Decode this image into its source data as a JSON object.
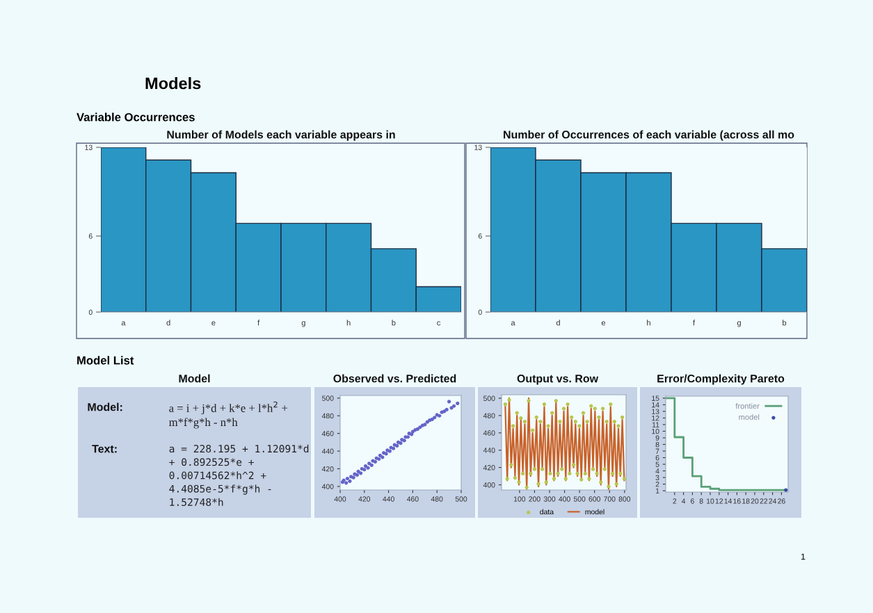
{
  "chart_data": [
    {
      "type": "other",
      "title": "Models",
      "annotations": [
        "Variable Occurrences",
        "Model List",
        "1"
      ]
    },
    {
      "type": "bar",
      "title": "Number of Models each variable appears in",
      "categories": [
        "a",
        "d",
        "e",
        "f",
        "g",
        "h",
        "b",
        "c"
      ],
      "values": [
        13,
        12,
        11,
        7,
        7,
        7,
        5,
        2
      ],
      "color": "#2a96c4",
      "ylim": [
        0,
        13
      ],
      "yticks": [
        0,
        6,
        13
      ],
      "grid": false
    },
    {
      "type": "bar",
      "title": "Number of Occurrences of each variable (across all mo",
      "categories": [
        "a",
        "d",
        "e",
        "h",
        "f",
        "g",
        "b"
      ],
      "values": [
        13,
        12,
        11,
        11,
        7,
        7,
        5
      ],
      "color": "#2a96c4",
      "ylim": [
        0,
        13
      ],
      "yticks": [
        0,
        6,
        13
      ],
      "grid": false
    },
    {
      "type": "other",
      "title": "Model",
      "annotations": [
        "Model:",
        "a = i + j*d + k*e + l*h$^{2}$ +\nm*f*g*h - n*h",
        "Text:",
        "a = 228.195 + 1.12091*d\n+ 0.892525*e +\n0.00714562*h^2 +\n4.4085e-5*f*g*h -\n1.52748*h"
      ]
    },
    {
      "type": "scatter",
      "title": "Observed vs. Predicted",
      "color": "#6464c8",
      "marker": "circle",
      "grid": false,
      "xlim": [
        400,
        500
      ],
      "ylim": [
        396,
        503
      ],
      "xticks": [
        400,
        420,
        440,
        460,
        480,
        500
      ],
      "yticks": [
        400,
        420,
        440,
        460,
        480,
        500
      ],
      "x": [
        402,
        403,
        405,
        406,
        408,
        409,
        411,
        412,
        414,
        415,
        417,
        418,
        420,
        421,
        423,
        424,
        426,
        427,
        429,
        430,
        432,
        433,
        435,
        436,
        438,
        439,
        441,
        442,
        444,
        445,
        447,
        448,
        450,
        451,
        453,
        454,
        456,
        457,
        459,
        460,
        462,
        464,
        466,
        468,
        470,
        472,
        474,
        476,
        478,
        480,
        482,
        484,
        486,
        488,
        490,
        492,
        494,
        497
      ],
      "values": [
        405,
        407,
        404,
        409,
        406,
        411,
        410,
        414,
        413,
        417,
        415,
        420,
        419,
        423,
        421,
        426,
        424,
        429,
        428,
        432,
        431,
        435,
        433,
        438,
        437,
        441,
        440,
        444,
        443,
        447,
        446,
        450,
        449,
        453,
        452,
        456,
        456,
        460,
        459,
        462,
        464,
        465,
        467,
        469,
        470,
        473,
        475,
        476,
        478,
        481,
        480,
        484,
        485,
        487,
        496,
        489,
        491,
        494
      ]
    },
    {
      "type": "line",
      "title": "Output vs. Row",
      "grid": false,
      "legend": "bottom",
      "xlim": [
        -20,
        810
      ],
      "ylim": [
        394,
        504
      ],
      "xticks": [
        100,
        200,
        300,
        400,
        500,
        600,
        700,
        800
      ],
      "yticks": [
        400,
        420,
        440,
        460,
        480,
        500
      ],
      "x": [
        5,
        18,
        31,
        44,
        57,
        70,
        83,
        96,
        109,
        122,
        135,
        148,
        161,
        174,
        187,
        200,
        213,
        226,
        239,
        252,
        265,
        278,
        291,
        304,
        317,
        330,
        343,
        356,
        369,
        382,
        395,
        408,
        421,
        434,
        447,
        460,
        473,
        486,
        499,
        512,
        525,
        538,
        551,
        564,
        577,
        590,
        603,
        616,
        629,
        642,
        655,
        668,
        681,
        694,
        707,
        720,
        733,
        746,
        759,
        772,
        785,
        798
      ],
      "series": [
        {
          "name": "data",
          "type": "scatter",
          "marker": "circle",
          "color": "#b8c64c",
          "values": [
            493,
            407,
            498,
            423,
            468,
            408,
            483,
            403,
            477,
            413,
            473,
            397,
            497,
            413,
            463,
            418,
            478,
            401,
            473,
            418,
            493,
            403,
            468,
            413,
            483,
            407,
            497,
            413,
            473,
            418,
            488,
            407,
            493,
            413,
            478,
            423,
            473,
            413,
            468,
            406,
            483,
            413,
            473,
            407,
            491,
            418,
            488,
            413,
            478,
            403,
            488,
            418,
            473,
            398,
            493,
            413,
            473,
            401,
            468,
            413,
            478,
            407
          ]
        },
        {
          "name": "model",
          "type": "line",
          "color": "#c8622a",
          "values": [
            490,
            405,
            500,
            420,
            465,
            410,
            480,
            400,
            475,
            415,
            470,
            395,
            500,
            410,
            460,
            420,
            475,
            398,
            470,
            420,
            490,
            400,
            465,
            415,
            480,
            405,
            495,
            410,
            470,
            420,
            485,
            405,
            490,
            415,
            475,
            420,
            470,
            410,
            465,
            408,
            480,
            415,
            470,
            405,
            488,
            420,
            485,
            410,
            475,
            400,
            485,
            420,
            470,
            395,
            490,
            410,
            470,
            398,
            465,
            410,
            475,
            405
          ]
        }
      ]
    },
    {
      "type": "step",
      "title": "Error/Complexity Pareto",
      "grid": false,
      "legend": "top right",
      "xlim": [
        0,
        27.5
      ],
      "ylim": [
        0.8,
        15.3
      ],
      "xticks": [
        2,
        4,
        6,
        8,
        10,
        12,
        14,
        16,
        18,
        20,
        22,
        24,
        26
      ],
      "yticks": [
        1,
        2,
        3,
        4,
        5,
        6,
        7,
        8,
        9,
        10,
        11,
        12,
        13,
        14,
        15
      ],
      "series": [
        {
          "name": "frontier",
          "type": "step",
          "color": "#5aa078",
          "x": [
            0,
            2,
            4,
            6,
            8,
            10,
            12,
            27
          ],
          "values": [
            15,
            9.1,
            6,
            3.2,
            1.6,
            1.3,
            1.1,
            1.1
          ]
        },
        {
          "name": "model",
          "type": "scatter",
          "marker": "circle",
          "color": "#3a4aa0",
          "x": [
            27
          ],
          "values": [
            1.1
          ]
        }
      ]
    }
  ]
}
